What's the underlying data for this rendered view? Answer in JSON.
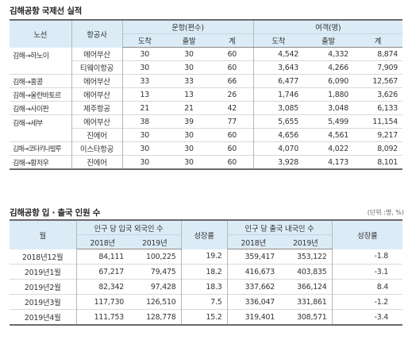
{
  "table1": {
    "title": "김해공항 국제선 실적",
    "headers": {
      "route": "노선",
      "airline": "항공사",
      "flights": "운항(편수)",
      "passengers": "여객(명)",
      "arrive": "도착",
      "depart": "출발",
      "total": "계"
    },
    "rows": [
      {
        "route": "김해→하노이",
        "airline": "에어부산",
        "f_arr": "30",
        "f_dep": "30",
        "f_tot": "60",
        "p_arr": "4,542",
        "p_dep": "4,332",
        "p_tot": "8,874"
      },
      {
        "route": "",
        "airline": "티웨이항공",
        "f_arr": "30",
        "f_dep": "30",
        "f_tot": "60",
        "p_arr": "3,643",
        "p_dep": "4,266",
        "p_tot": "7,909"
      },
      {
        "route": "김해→홍콩",
        "airline": "에어부산",
        "f_arr": "33",
        "f_dep": "33",
        "f_tot": "66",
        "p_arr": "6,477",
        "p_dep": "6,090",
        "p_tot": "12,567"
      },
      {
        "route": "김해→울란바토르",
        "airline": "에어부산",
        "f_arr": "13",
        "f_dep": "13",
        "f_tot": "26",
        "p_arr": "1,746",
        "p_dep": "1,880",
        "p_tot": "3,626"
      },
      {
        "route": "김해→사이판",
        "airline": "제주항공",
        "f_arr": "21",
        "f_dep": "21",
        "f_tot": "42",
        "p_arr": "3,085",
        "p_dep": "3,048",
        "p_tot": "6,133"
      },
      {
        "route": "김해→세부",
        "airline": "에어부산",
        "f_arr": "38",
        "f_dep": "39",
        "f_tot": "77",
        "p_arr": "5,655",
        "p_dep": "5,499",
        "p_tot": "11,154"
      },
      {
        "route": "",
        "airline": "진에어",
        "f_arr": "30",
        "f_dep": "30",
        "f_tot": "60",
        "p_arr": "4,656",
        "p_dep": "4,561",
        "p_tot": "9,217"
      },
      {
        "route": "김해→코타키나발루",
        "airline": "이스타항공",
        "f_arr": "30",
        "f_dep": "30",
        "f_tot": "60",
        "p_arr": "4,070",
        "p_dep": "4,022",
        "p_tot": "8,092"
      },
      {
        "route": "김해→황저우",
        "airline": "진에어",
        "f_arr": "30",
        "f_dep": "30",
        "f_tot": "60",
        "p_arr": "3,928",
        "p_dep": "4,173",
        "p_tot": "8,101"
      }
    ]
  },
  "table2": {
    "title": "김해공항 입 · 출국 인원 수",
    "unit": "(단위 :명, %)",
    "headers": {
      "month": "월",
      "inbound": "인구 당 입국 외국인 수",
      "growth1": "성장률",
      "outbound": "인구 당 출국 내국인 수",
      "growth2": "성장률",
      "y2018": "2018년",
      "y2019": "2019년"
    },
    "rows": [
      {
        "month": "2018년12월",
        "in_2018": "84,111",
        "in_2019": "100,225",
        "g1": "19.2",
        "out_2018": "359,417",
        "out_2019": "353,122",
        "g2": "-1.8"
      },
      {
        "month": "2019년1월",
        "in_2018": "67,217",
        "in_2019": "79,475",
        "g1": "18.2",
        "out_2018": "416,673",
        "out_2019": "403,835",
        "g2": "-3.1"
      },
      {
        "month": "2019년2월",
        "in_2018": "82,342",
        "in_2019": "97,428",
        "g1": "18.3",
        "out_2018": "337,662",
        "out_2019": "366,124",
        "g2": "8.4"
      },
      {
        "month": "2019년3월",
        "in_2018": "117,730",
        "in_2019": "126,510",
        "g1": "7.5",
        "out_2018": "336,047",
        "out_2019": "331,861",
        "g2": "-1.2"
      },
      {
        "month": "2019년4월",
        "in_2018": "111,753",
        "in_2019": "128,778",
        "g1": "15.2",
        "out_2018": "319,401",
        "out_2019": "308,571",
        "g2": "-3.4"
      }
    ]
  },
  "colors": {
    "header_bg": "#dcecf7",
    "rule": "#6a6a6a"
  }
}
